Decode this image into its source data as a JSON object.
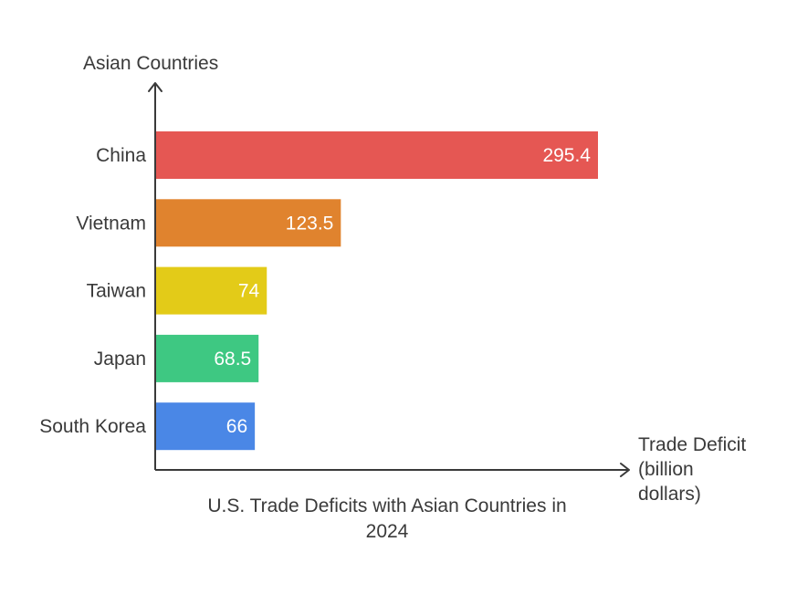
{
  "chart_data": {
    "type": "bar",
    "orientation": "horizontal",
    "title_lines": [
      "U.S. Trade Deficits with Asian Countries in",
      "2024"
    ],
    "ylabel": "Asian Countries",
    "xlabel_lines": [
      "Trade Deficit",
      "(billion",
      "dollars)"
    ],
    "categories": [
      "China",
      "Vietnam",
      "Taiwan",
      "Japan",
      "South Korea"
    ],
    "values": [
      295.4,
      123.5,
      74,
      68.5,
      66
    ],
    "value_labels": [
      "295.4",
      "123.5",
      "74",
      "68.5",
      "66"
    ],
    "colors": [
      "#e55753",
      "#e0832e",
      "#e3cb18",
      "#3ec882",
      "#4a87e6"
    ],
    "xlim": [
      0,
      295.4
    ],
    "grid": false,
    "legend": "none"
  }
}
